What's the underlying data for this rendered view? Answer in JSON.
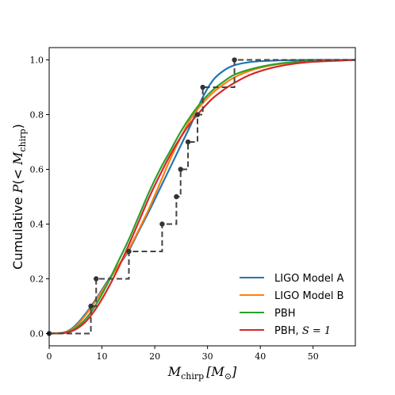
{
  "chart_data": {
    "type": "line",
    "xlabel": {
      "main": "M",
      "sub": "chirp",
      "unit": "[M",
      "unit_sub": "⊙",
      "unit_close": "]"
    },
    "ylabel": {
      "prefix": "Cumulative ",
      "p": "P",
      "open": "(< ",
      "m": "M",
      "sub": "chirp",
      "close": ")"
    },
    "xlim": [
      0,
      58
    ],
    "ylim": [
      -0.045,
      1.045
    ],
    "xticks": [
      0,
      10,
      20,
      30,
      40,
      50
    ],
    "yticks": [
      0.0,
      0.2,
      0.4,
      0.6,
      0.8,
      1.0
    ],
    "xtick_labels": [
      "0",
      "10",
      "20",
      "30",
      "40",
      "50"
    ],
    "ytick_labels": [
      "0.0",
      "0.2",
      "0.4",
      "0.6",
      "0.8",
      "1.0"
    ],
    "grid": false,
    "legend_position": "lower-right",
    "observed": {
      "style": "dashed-step",
      "color": "#444444",
      "points": [
        [
          0.0,
          0.0
        ],
        [
          7.9,
          0.1
        ],
        [
          8.9,
          0.2
        ],
        [
          15.1,
          0.3
        ],
        [
          21.4,
          0.4
        ],
        [
          24.1,
          0.5
        ],
        [
          24.9,
          0.6
        ],
        [
          26.3,
          0.7
        ],
        [
          28.1,
          0.8
        ],
        [
          29.1,
          0.9
        ],
        [
          35.1,
          1.0
        ]
      ]
    },
    "series": [
      {
        "name": "LIGO Model A",
        "color": "#1f77b4",
        "x": [
          0,
          3,
          5,
          7,
          9,
          11,
          13,
          15,
          17,
          19,
          21,
          23,
          25,
          27,
          29,
          31,
          33,
          35,
          38,
          42,
          46,
          50,
          58
        ],
        "y": [
          0,
          0.005,
          0.03,
          0.075,
          0.13,
          0.19,
          0.245,
          0.3,
          0.375,
          0.45,
          0.53,
          0.61,
          0.69,
          0.77,
          0.86,
          0.925,
          0.96,
          0.98,
          0.992,
          0.997,
          0.999,
          1.0,
          1.0
        ]
      },
      {
        "name": "LIGO Model B",
        "color": "#ff7f0e",
        "x": [
          0,
          3,
          5,
          7,
          9,
          11,
          13,
          15,
          17,
          19,
          21,
          23,
          25,
          27,
          29,
          31,
          33,
          35,
          38,
          42,
          46,
          50,
          58
        ],
        "y": [
          0,
          0.004,
          0.025,
          0.07,
          0.125,
          0.185,
          0.245,
          0.305,
          0.38,
          0.46,
          0.55,
          0.64,
          0.72,
          0.79,
          0.84,
          0.88,
          0.91,
          0.935,
          0.96,
          0.98,
          0.99,
          0.996,
          1.0
        ]
      },
      {
        "name": "PBH",
        "color": "#2ca02c",
        "x": [
          0,
          3,
          5,
          7,
          9,
          11,
          13,
          15,
          17,
          19,
          21,
          23,
          25,
          27,
          29,
          31,
          33,
          35,
          38,
          42,
          46,
          50,
          58
        ],
        "y": [
          0,
          0.003,
          0.02,
          0.055,
          0.11,
          0.18,
          0.26,
          0.34,
          0.43,
          0.52,
          0.6,
          0.67,
          0.74,
          0.8,
          0.85,
          0.89,
          0.92,
          0.945,
          0.965,
          0.982,
          0.992,
          0.997,
          1.0
        ]
      },
      {
        "name": "PBH, S = 1",
        "color": "#d62728",
        "x": [
          0,
          3,
          5,
          7,
          9,
          11,
          13,
          15,
          17,
          19,
          21,
          23,
          25,
          27,
          29,
          31,
          33,
          35,
          38,
          42,
          46,
          50,
          58
        ],
        "y": [
          0,
          0.002,
          0.015,
          0.045,
          0.095,
          0.16,
          0.235,
          0.32,
          0.41,
          0.5,
          0.58,
          0.655,
          0.72,
          0.775,
          0.82,
          0.86,
          0.89,
          0.915,
          0.945,
          0.97,
          0.985,
          0.993,
          1.0
        ]
      }
    ],
    "legend": [
      {
        "label": "LIGO Model A",
        "color": "#1f77b4"
      },
      {
        "label": "LIGO Model B",
        "color": "#ff7f0e"
      },
      {
        "label": "PBH",
        "color": "#2ca02c"
      },
      {
        "label_prefix": "PBH, ",
        "label_math": "S = 1",
        "color": "#d62728"
      }
    ]
  }
}
